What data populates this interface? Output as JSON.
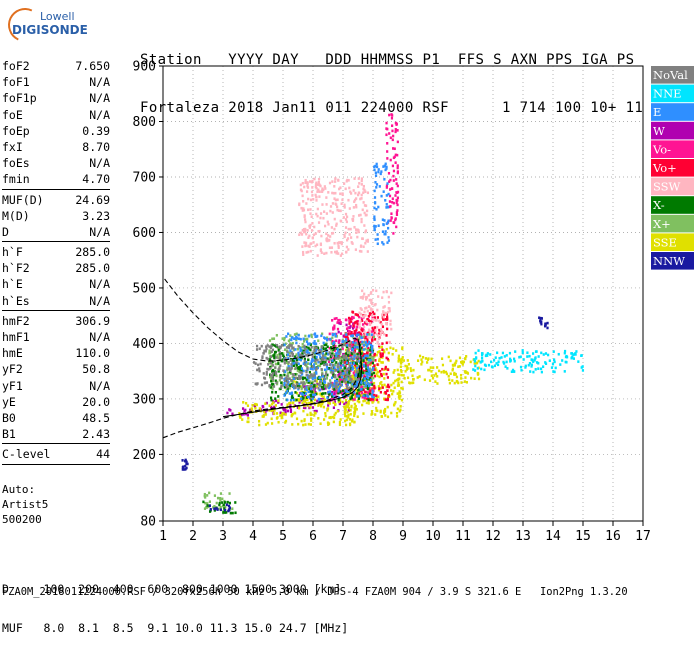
{
  "logo": {
    "line1": "Lowell",
    "line2": "DIGISONDE"
  },
  "header": {
    "line1": "Station   YYYY DAY   DDD HHMMSS P1  FFS S AXN PPS IGA PS",
    "line2": "Fortaleza 2018 Jan11 011 224000 RSF      1 714 100 10+ 11"
  },
  "params": {
    "group1": [
      {
        "k": "foF2",
        "v": "7.650"
      },
      {
        "k": "foF1",
        "v": "N/A"
      },
      {
        "k": "foF1p",
        "v": "N/A"
      },
      {
        "k": "foE",
        "v": "N/A"
      },
      {
        "k": "foEp",
        "v": "0.39"
      },
      {
        "k": "fxI",
        "v": "8.70"
      },
      {
        "k": "foEs",
        "v": "N/A"
      },
      {
        "k": "fmin",
        "v": "4.70"
      }
    ],
    "group2": [
      {
        "k": "MUF(D)",
        "v": "24.69"
      },
      {
        "k": "M(D)",
        "v": "3.23"
      },
      {
        "k": "D",
        "v": "N/A"
      }
    ],
    "group3": [
      {
        "k": "h`F",
        "v": "285.0"
      },
      {
        "k": "h`F2",
        "v": "285.0"
      },
      {
        "k": "h`E",
        "v": "N/A"
      },
      {
        "k": "h`Es",
        "v": "N/A"
      }
    ],
    "group4": [
      {
        "k": "hmF2",
        "v": "306.9"
      },
      {
        "k": "hmF1",
        "v": "N/A"
      },
      {
        "k": "hmE",
        "v": "110.0"
      },
      {
        "k": "yF2",
        "v": "50.8"
      },
      {
        "k": "yF1",
        "v": "N/A"
      },
      {
        "k": "yE",
        "v": "20.0"
      },
      {
        "k": "B0",
        "v": "48.5"
      },
      {
        "k": "B1",
        "v": "2.43"
      }
    ],
    "group5": [
      {
        "k": "C-level",
        "v": "44"
      }
    ]
  },
  "auto": {
    "line1": "Auto:",
    "line2": "Artist5",
    "line3": "500200"
  },
  "distance_table": {
    "row1": "D     100  200  400  600  800 1000 1500 3000 [km]",
    "row2": "MUF   8.0  8.1  8.5  9.1 10.0 11.3 15.0 24.7 [MHz]"
  },
  "footer": "FZA0M_2018011224000.RSF / 320fx256h 50 kHz 5.0 km / DPS-4 FZA0M 904 / 3.9 S 321.6 E   Ion2Png 1.3.20",
  "legend": [
    {
      "label": "NoVal",
      "color": "#808080",
      "text": "#ffffff"
    },
    {
      "label": "NNE",
      "color": "#00e5ff",
      "text": "#ffffff"
    },
    {
      "label": "E",
      "color": "#2f8fff",
      "text": "#ffffff"
    },
    {
      "label": "W",
      "color": "#b000b0",
      "text": "#ffffff"
    },
    {
      "label": "Vo-",
      "color": "#ff1493",
      "text": "#ffffff"
    },
    {
      "label": "Vo+",
      "color": "#ff0033",
      "text": "#ffffff"
    },
    {
      "label": "SSW",
      "color": "#ffb6c1",
      "text": "#ffffff"
    },
    {
      "label": "X-",
      "color": "#007a00",
      "text": "#ffffff"
    },
    {
      "label": "X+",
      "color": "#80c060",
      "text": "#ffffff"
    },
    {
      "label": "SSE",
      "color": "#e0e000",
      "text": "#ffffff"
    },
    {
      "label": "NNW",
      "color": "#1a1aa0",
      "text": "#ffffff"
    }
  ],
  "chart_data": {
    "type": "scatter",
    "xlim": [
      1,
      17
    ],
    "ylim": [
      80,
      900
    ],
    "x_ticks": [
      1,
      2,
      3,
      4,
      5,
      6,
      7,
      8,
      9,
      10,
      11,
      12,
      13,
      14,
      15,
      16,
      17
    ],
    "y_ticks": [
      80,
      200,
      300,
      400,
      500,
      600,
      700,
      800,
      900
    ],
    "grid": "dotted",
    "legend_position": "right",
    "curves": [
      {
        "name": "dashed-profile",
        "style": "dashed",
        "points": [
          [
            1.0,
            230
          ],
          [
            1.5,
            240
          ],
          [
            2.0,
            248
          ],
          [
            2.5,
            256
          ],
          [
            3.0,
            265
          ],
          [
            3.5,
            272
          ],
          [
            4.0,
            278
          ],
          [
            4.5,
            282
          ],
          [
            5.0,
            285
          ],
          [
            5.5,
            288
          ],
          [
            6.0,
            292
          ],
          [
            6.5,
            298
          ],
          [
            7.0,
            308
          ],
          [
            7.3,
            320
          ],
          [
            7.5,
            340
          ],
          [
            7.6,
            370
          ],
          [
            7.55,
            400
          ],
          [
            7.4,
            410
          ],
          [
            7.0,
            398
          ],
          [
            6.5,
            388
          ],
          [
            6.0,
            380
          ],
          [
            5.5,
            374
          ],
          [
            5.0,
            370
          ],
          [
            4.5,
            368
          ],
          [
            4.0,
            372
          ],
          [
            3.5,
            385
          ],
          [
            3.0,
            405
          ],
          [
            2.5,
            428
          ],
          [
            2.0,
            455
          ],
          [
            1.5,
            485
          ],
          [
            1.0,
            520
          ]
        ]
      },
      {
        "name": "solid-trace",
        "style": "solid",
        "points": [
          [
            3.0,
            268
          ],
          [
            3.5,
            272
          ],
          [
            4.0,
            276
          ],
          [
            4.5,
            280
          ],
          [
            5.0,
            284
          ],
          [
            5.5,
            287
          ],
          [
            6.0,
            291
          ],
          [
            6.5,
            296
          ],
          [
            7.0,
            303
          ],
          [
            7.3,
            311
          ],
          [
            7.5,
            322
          ],
          [
            7.6,
            338
          ],
          [
            7.62,
            355
          ],
          [
            7.6,
            375
          ],
          [
            7.55,
            395
          ],
          [
            7.5,
            408
          ]
        ]
      }
    ],
    "series": [
      {
        "name": "W",
        "clusters": [
          [
            3,
            270,
            4,
            285
          ],
          [
            4,
            275,
            5.5,
            300
          ],
          [
            5.5,
            280,
            7.2,
            330
          ],
          [
            6.8,
            330,
            7.6,
            440
          ]
        ]
      },
      {
        "name": "SSE",
        "clusters": [
          [
            3.5,
            255,
            7.5,
            300
          ],
          [
            7.0,
            270,
            9.0,
            400
          ],
          [
            8.8,
            330,
            11.5,
            380
          ],
          [
            5.0,
            295,
            7.8,
            340
          ]
        ]
      },
      {
        "name": "NNE",
        "clusters": [
          [
            11.3,
            350,
            15.0,
            390
          ]
        ]
      },
      {
        "name": "Vo-",
        "clusters": [
          [
            6.5,
            300,
            8.0,
            450
          ],
          [
            8.4,
            600,
            8.8,
            820
          ]
        ]
      },
      {
        "name": "Vo+",
        "clusters": [
          [
            7.0,
            300,
            8.5,
            460
          ]
        ]
      },
      {
        "name": "SSW",
        "clusters": [
          [
            5.5,
            560,
            7.8,
            700
          ],
          [
            7.5,
            400,
            8.6,
            500
          ]
        ]
      },
      {
        "name": "X+",
        "clusters": [
          [
            2.3,
            100,
            3.3,
            135
          ],
          [
            4.5,
            320,
            8.0,
            420
          ]
        ]
      },
      {
        "name": "X-",
        "clusters": [
          [
            4.5,
            300,
            8.0,
            400
          ],
          [
            2.3,
            96,
            3.5,
            118
          ]
        ]
      },
      {
        "name": "E",
        "clusters": [
          [
            5.0,
            300,
            8.0,
            420
          ],
          [
            8.0,
            580,
            8.5,
            730
          ]
        ]
      },
      {
        "name": "NNW",
        "clusters": [
          [
            2.4,
            100,
            3.2,
            112
          ],
          [
            1.6,
            175,
            1.8,
            195
          ],
          [
            13.5,
            430,
            13.8,
            450
          ]
        ]
      },
      {
        "name": "NoVal",
        "clusters": [
          [
            4.0,
            320,
            7.5,
            400
          ]
        ]
      }
    ]
  }
}
